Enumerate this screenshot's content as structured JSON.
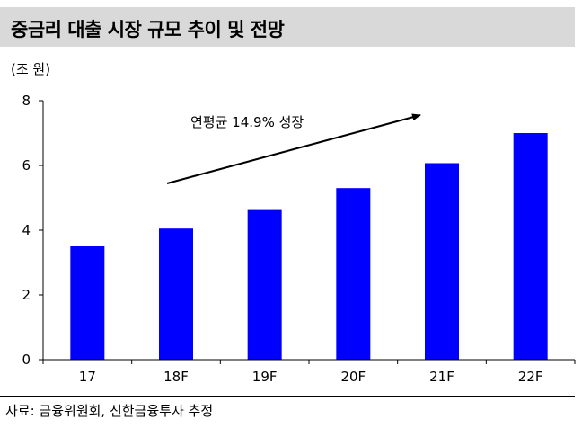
{
  "chart_data": {
    "type": "bar",
    "title": "중금리 대출 시장 규모 추이 및 전망",
    "unit": "(조 원)",
    "categories": [
      "17",
      "18F",
      "19F",
      "20F",
      "21F",
      "22F"
    ],
    "values": [
      3.5,
      4.05,
      4.65,
      5.3,
      6.07,
      7.0
    ],
    "ylim": [
      0,
      8
    ],
    "yticks": [
      "0",
      "2",
      "4",
      "6",
      "8"
    ],
    "grid": false,
    "legend": "none",
    "bar_color": "#0000ff",
    "annotation": "연평균 14.9% 성장",
    "source": "자료: 금융위원회, 신한금융투자 추정"
  }
}
